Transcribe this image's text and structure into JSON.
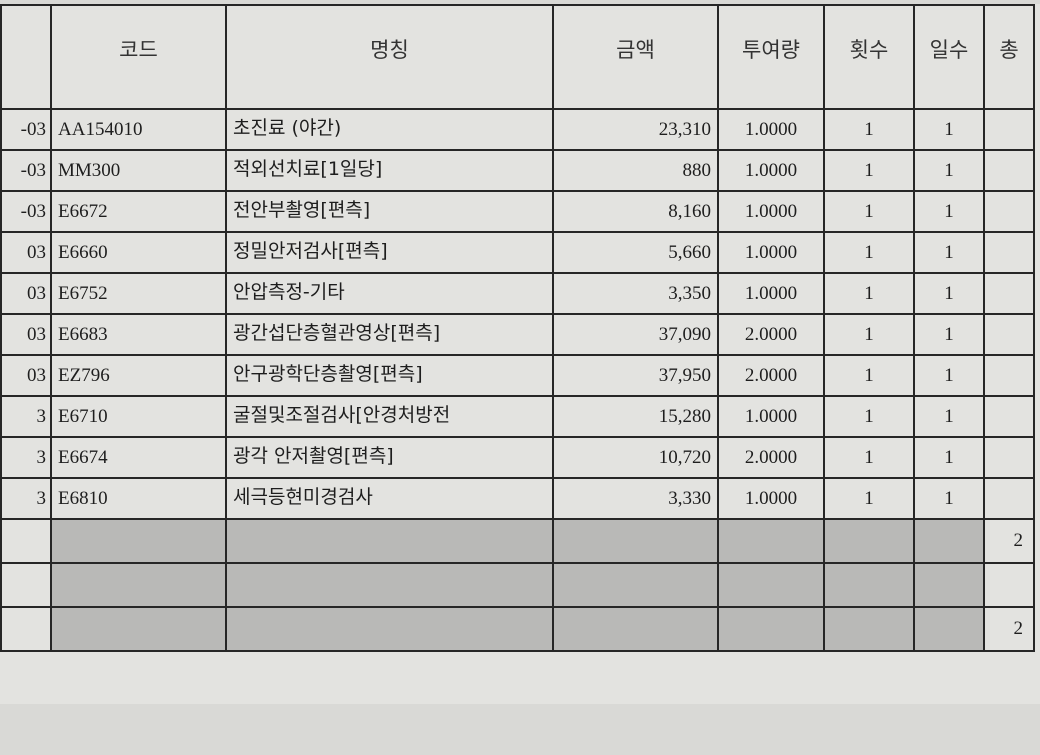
{
  "headers": [
    "",
    "코드",
    "명칭",
    "금액",
    "투여량",
    "횟수",
    "일수",
    "총"
  ],
  "rows": [
    {
      "date": "-03",
      "code": "AA154010",
      "name": "초진료 (야간)",
      "amount": "23,310",
      "dose": "1.0000",
      "times": "1",
      "days": "1"
    },
    {
      "date": "-03",
      "code": "MM300",
      "name": "적외선치료[1일당]",
      "amount": "880",
      "dose": "1.0000",
      "times": "1",
      "days": "1"
    },
    {
      "date": "-03",
      "code": "E6672",
      "name": "전안부촬영[편측]",
      "amount": "8,160",
      "dose": "1.0000",
      "times": "1",
      "days": "1"
    },
    {
      "date": "03",
      "code": "E6660",
      "name": "정밀안저검사[편측]",
      "amount": "5,660",
      "dose": "1.0000",
      "times": "1",
      "days": "1"
    },
    {
      "date": "03",
      "code": "E6752",
      "name": "안압측정-기타",
      "amount": "3,350",
      "dose": "1.0000",
      "times": "1",
      "days": "1"
    },
    {
      "date": "03",
      "code": "E6683",
      "name": "광간섭단층혈관영상[편측]",
      "amount": "37,090",
      "dose": "2.0000",
      "times": "1",
      "days": "1"
    },
    {
      "date": "03",
      "code": "EZ796",
      "name": "안구광학단층촬영[편측]",
      "amount": "37,950",
      "dose": "2.0000",
      "times": "1",
      "days": "1"
    },
    {
      "date": "3",
      "code": "E6710",
      "name": "굴절및조절검사[안경처방전",
      "amount": "15,280",
      "dose": "1.0000",
      "times": "1",
      "days": "1"
    },
    {
      "date": "3",
      "code": "E6674",
      "name": "광각 안저촬영[편측]",
      "amount": "10,720",
      "dose": "2.0000",
      "times": "1",
      "days": "1"
    },
    {
      "date": "3",
      "code": "E6810",
      "name": "세극등현미경검사",
      "amount": "3,330",
      "dose": "1.0000",
      "times": "1",
      "days": "1"
    }
  ],
  "summary_rows": [
    {
      "total": "2"
    },
    {
      "total": ""
    },
    {
      "total": "2"
    }
  ]
}
